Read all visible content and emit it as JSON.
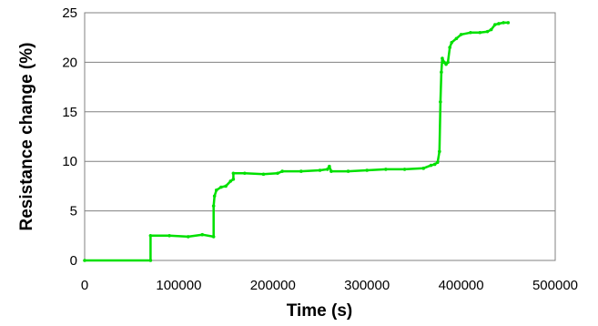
{
  "chart_data": {
    "type": "line",
    "title": "",
    "xlabel": "Time (s)",
    "ylabel": "Resistance change (%)",
    "xlim": [
      0,
      500000
    ],
    "ylim": [
      0,
      25
    ],
    "x_ticks": [
      "0",
      "100000",
      "200000",
      "300000",
      "400000",
      "500000"
    ],
    "y_ticks": [
      "0",
      "5",
      "10",
      "15",
      "20",
      "25"
    ],
    "grid": "horizontal",
    "legend": "none",
    "line_color": "#00e000",
    "series": [
      {
        "x": [
          0,
          70000,
          70000,
          90000,
          110000,
          125000,
          137000,
          137000,
          138000,
          140000,
          145000,
          150000,
          155000,
          158000,
          158000,
          170000,
          190000,
          205000,
          210000,
          230000,
          250000,
          258000,
          260000,
          262000,
          280000,
          300000,
          320000,
          340000,
          360000,
          368000,
          372000,
          375000,
          377000,
          378000,
          379000,
          380000,
          382000,
          384000,
          386000,
          388000,
          390000,
          395000,
          400000,
          410000,
          420000,
          428000,
          432000,
          436000,
          440000,
          445000,
          450000
        ],
        "y": [
          0,
          0,
          2.5,
          2.5,
          2.4,
          2.6,
          2.4,
          5.5,
          6.5,
          7.1,
          7.4,
          7.5,
          8.0,
          8.2,
          8.8,
          8.8,
          8.7,
          8.8,
          9.0,
          9.0,
          9.1,
          9.2,
          9.5,
          9.0,
          9.0,
          9.1,
          9.2,
          9.2,
          9.3,
          9.6,
          9.7,
          9.9,
          11.0,
          16.0,
          19.0,
          20.4,
          20.0,
          19.8,
          20.0,
          21.5,
          22.0,
          22.4,
          22.8,
          23.0,
          23.0,
          23.1,
          23.3,
          23.8,
          23.9,
          24.0,
          24.0
        ]
      }
    ]
  }
}
